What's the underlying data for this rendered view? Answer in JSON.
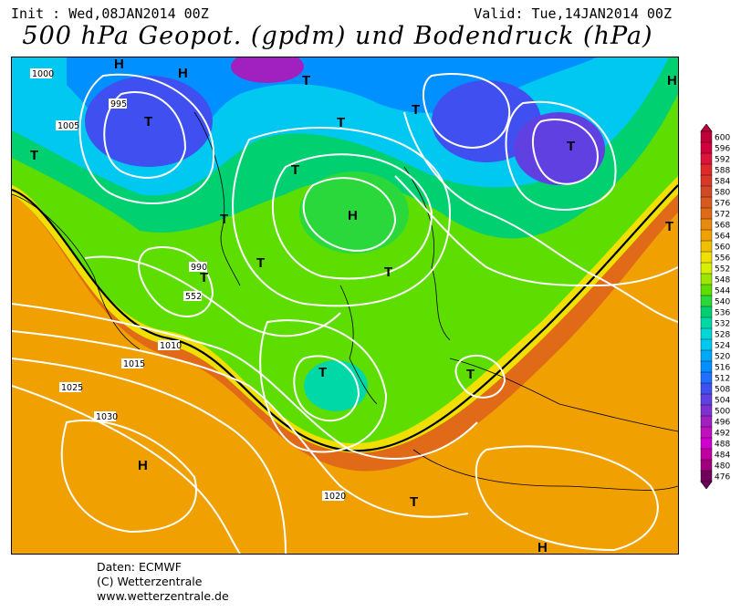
{
  "header": {
    "init": "Init : Wed,08JAN2014 00Z",
    "valid": "Valid: Tue,14JAN2014 00Z",
    "title": "500 hPa Geopot. (gpdm) und Bodendruck (hPa)"
  },
  "credits": [
    "Daten: ECMWF",
    "(C) Wetterzentrale",
    "www.wetterzentrale.de"
  ],
  "legend": {
    "levels": [
      600,
      596,
      592,
      588,
      584,
      580,
      576,
      572,
      568,
      564,
      560,
      556,
      552,
      548,
      544,
      540,
      536,
      532,
      528,
      524,
      520,
      516,
      512,
      508,
      504,
      500,
      496,
      492,
      488,
      484,
      480,
      476
    ],
    "colors": [
      "#c0003a",
      "#d0003c",
      "#dc143c",
      "#e02a2a",
      "#d8382a",
      "#d04a28",
      "#d85a20",
      "#e06a18",
      "#e88a10",
      "#f0a000",
      "#f0c000",
      "#f0e000",
      "#d8f000",
      "#9ee600",
      "#5ede00",
      "#2ad83c",
      "#00d070",
      "#00d8a8",
      "#00d8d8",
      "#00c8f0",
      "#00a8f8",
      "#0090ff",
      "#2070ff",
      "#4050f0",
      "#6040e0",
      "#8030d0",
      "#a020c0",
      "#c010c0",
      "#d000d0",
      "#c000a0",
      "#a00080",
      "#70005a"
    ]
  },
  "map_labels": {
    "pressure_systems": [
      {
        "id": "h1",
        "text": "H"
      },
      {
        "id": "h2",
        "text": "H"
      },
      {
        "id": "h3",
        "text": "H"
      },
      {
        "id": "h4",
        "text": "H"
      },
      {
        "id": "h5",
        "text": "H"
      },
      {
        "id": "h6",
        "text": "H"
      },
      {
        "id": "t1",
        "text": "T"
      },
      {
        "id": "t2",
        "text": "T"
      },
      {
        "id": "t3",
        "text": "T"
      },
      {
        "id": "t4",
        "text": "T"
      },
      {
        "id": "t5",
        "text": "T"
      },
      {
        "id": "t6",
        "text": "T"
      },
      {
        "id": "t7",
        "text": "T"
      },
      {
        "id": "t8",
        "text": "T"
      },
      {
        "id": "t9",
        "text": "T"
      },
      {
        "id": "t10",
        "text": "T"
      },
      {
        "id": "t11",
        "text": "T"
      },
      {
        "id": "t12",
        "text": "T"
      },
      {
        "id": "t13",
        "text": "T"
      },
      {
        "id": "t14",
        "text": "T"
      },
      {
        "id": "t15",
        "text": "T"
      }
    ],
    "isobar_values": [
      "1000",
      "1005",
      "1010",
      "1015",
      "1020",
      "1025",
      "1030",
      "995",
      "990",
      "552"
    ]
  }
}
